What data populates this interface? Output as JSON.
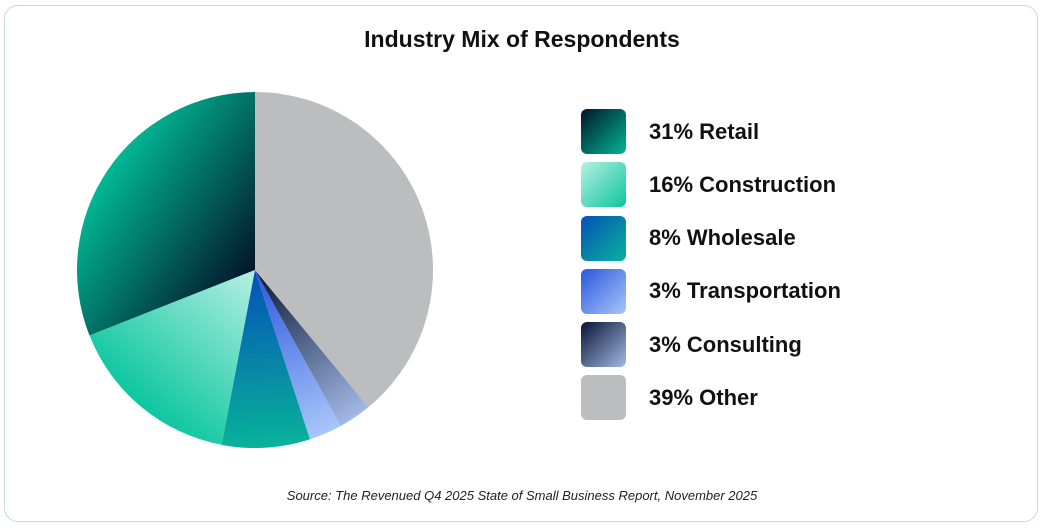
{
  "chart_data": {
    "type": "pie",
    "title": "Industry Mix of Respondents",
    "slices": [
      {
        "label": "31% Retail",
        "value": 31,
        "gradient": [
          "#02142a",
          "#01b894"
        ],
        "color": "#0a6e66"
      },
      {
        "label": "16% Construction",
        "value": 16,
        "gradient": [
          "#b6f0e2",
          "#0cc69f"
        ],
        "color": "#4fd8b8"
      },
      {
        "label": "8% Wholesale",
        "value": 8,
        "gradient": [
          "#0550b8",
          "#09b39a"
        ],
        "color": "#078aa6"
      },
      {
        "label": "3% Transportation",
        "value": 3,
        "gradient": [
          "#2a56de",
          "#a8c6fa"
        ],
        "color": "#5f88ee"
      },
      {
        "label": "3% Consulting",
        "value": 3,
        "gradient": [
          "#071632",
          "#a2b8e6"
        ],
        "color": "#4e6396"
      },
      {
        "label": "39% Other",
        "value": 39,
        "gradient": [
          "#bcbdbf",
          "#bcbdbf"
        ],
        "color": "#bcbdbf"
      }
    ],
    "start_angle_deg": 0,
    "direction": "counterclockwise",
    "legend_position": "right"
  },
  "source": "Source: The Revenued Q4 2025 State of Small Business Report, November 2025"
}
